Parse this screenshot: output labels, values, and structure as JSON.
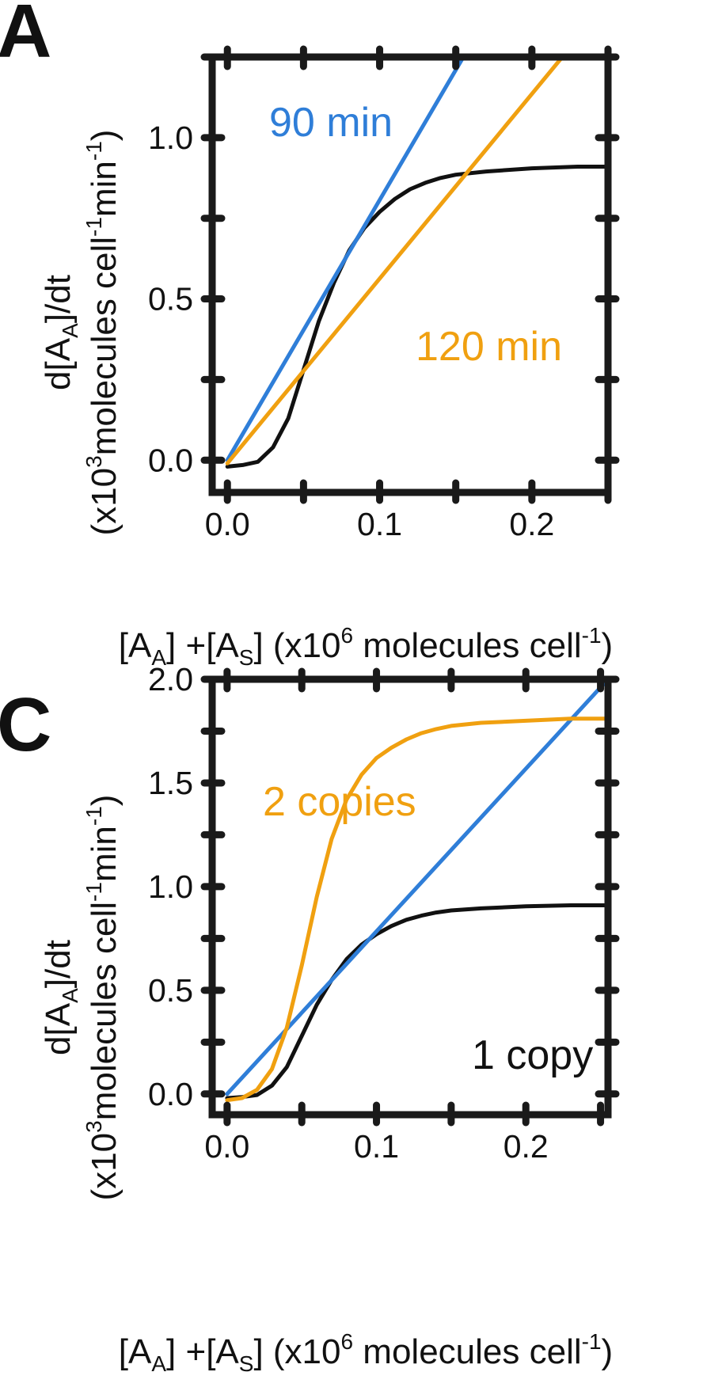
{
  "figure": {
    "panels": [
      {
        "letter": "A"
      },
      {
        "letter": "C"
      }
    ],
    "colors": {
      "black": "#111111",
      "blue": "#2f7ed8",
      "orange": "#f0a010",
      "frame": "#1a1a1a"
    },
    "axis_text": {
      "x_main": "[A",
      "x_sub1": "A",
      "x_mid": "] +[A",
      "x_sub2": "S",
      "x_rest": "] (x10",
      "x_sup": "6",
      "x_tail": " molecules cell",
      "x_sup2": "-1",
      "x_close": ")",
      "y_line1_a": "d[A",
      "y_line1_sub": "A",
      "y_line1_b": "]/dt",
      "y_line2_a": "(x10",
      "y_line2_sup": "3",
      "y_line2_b": "molecules cell",
      "y_line2_sup2": "-1",
      "y_line2_c": "min",
      "y_line2_sup3": "-1",
      "y_line2_d": ")"
    }
  },
  "chart_data": [
    {
      "panel": "A",
      "type": "line",
      "xlim": [
        -0.01,
        0.25
      ],
      "ylim": [
        -0.1,
        1.25
      ],
      "xticks": [
        0.0,
        0.1,
        0.2
      ],
      "xtick_labels": [
        "0.0",
        "0.1",
        "0.2"
      ],
      "yticks": [
        0.0,
        0.5,
        1.0
      ],
      "ytick_labels": [
        "0.0",
        "0.5",
        "1.0"
      ],
      "xlabel": "[AA] +[AS] (x10^6 molecules cell^-1)",
      "ylabel": "d[AA]/dt (x10^3 molecules cell^-1 min^-1)",
      "series": [
        {
          "color": "#111111",
          "x": [
            0.0,
            0.01,
            0.02,
            0.03,
            0.04,
            0.05,
            0.06,
            0.07,
            0.08,
            0.09,
            0.1,
            0.11,
            0.12,
            0.13,
            0.14,
            0.15,
            0.17,
            0.2,
            0.23,
            0.25
          ],
          "y": [
            -0.02,
            -0.015,
            -0.005,
            0.04,
            0.13,
            0.28,
            0.43,
            0.55,
            0.65,
            0.72,
            0.77,
            0.81,
            0.84,
            0.86,
            0.875,
            0.885,
            0.895,
            0.905,
            0.91,
            0.91
          ]
        },
        {
          "name": "90 min",
          "color": "#2f7ed8",
          "x": [
            0.0,
            0.155
          ],
          "y": [
            0.0,
            1.25
          ]
        },
        {
          "name": "120 min",
          "color": "#f0a010",
          "x": [
            0.0,
            0.22
          ],
          "y": [
            -0.01,
            1.25
          ]
        }
      ]
    },
    {
      "panel": "C",
      "type": "line",
      "xlim": [
        -0.01,
        0.255
      ],
      "ylim": [
        -0.1,
        2.0
      ],
      "xticks": [
        0.0,
        0.1,
        0.2
      ],
      "xtick_labels": [
        "0.0",
        "0.1",
        "0.2"
      ],
      "yticks": [
        0.0,
        0.5,
        1.0,
        1.5,
        2.0
      ],
      "ytick_labels": [
        "0.0",
        "0.5",
        "1.0",
        "1.5",
        "2.0"
      ],
      "xlabel": "[AA] +[AS] (x10^6 molecules cell^-1)",
      "ylabel": "d[AA]/dt (x10^3 molecules cell^-1 min^-1)",
      "series": [
        {
          "name": "1 copy",
          "color": "#111111",
          "x": [
            0.0,
            0.01,
            0.02,
            0.03,
            0.04,
            0.05,
            0.06,
            0.07,
            0.08,
            0.09,
            0.1,
            0.11,
            0.12,
            0.13,
            0.14,
            0.15,
            0.17,
            0.2,
            0.23,
            0.255
          ],
          "y": [
            -0.02,
            -0.015,
            -0.005,
            0.04,
            0.13,
            0.28,
            0.43,
            0.55,
            0.65,
            0.72,
            0.77,
            0.81,
            0.84,
            0.86,
            0.875,
            0.885,
            0.895,
            0.905,
            0.91,
            0.91
          ]
        },
        {
          "color": "#2f7ed8",
          "x": [
            0.0,
            0.255
          ],
          "y": [
            0.0,
            2.0
          ]
        },
        {
          "name": "2 copies",
          "color": "#f0a010",
          "x": [
            0.0,
            0.01,
            0.02,
            0.03,
            0.04,
            0.05,
            0.06,
            0.07,
            0.08,
            0.09,
            0.1,
            0.11,
            0.12,
            0.13,
            0.14,
            0.15,
            0.17,
            0.2,
            0.23,
            0.255
          ],
          "y": [
            -0.03,
            -0.02,
            0.02,
            0.12,
            0.32,
            0.62,
            0.95,
            1.23,
            1.42,
            1.54,
            1.62,
            1.67,
            1.71,
            1.74,
            1.76,
            1.775,
            1.79,
            1.8,
            1.81,
            1.81
          ]
        }
      ]
    }
  ]
}
